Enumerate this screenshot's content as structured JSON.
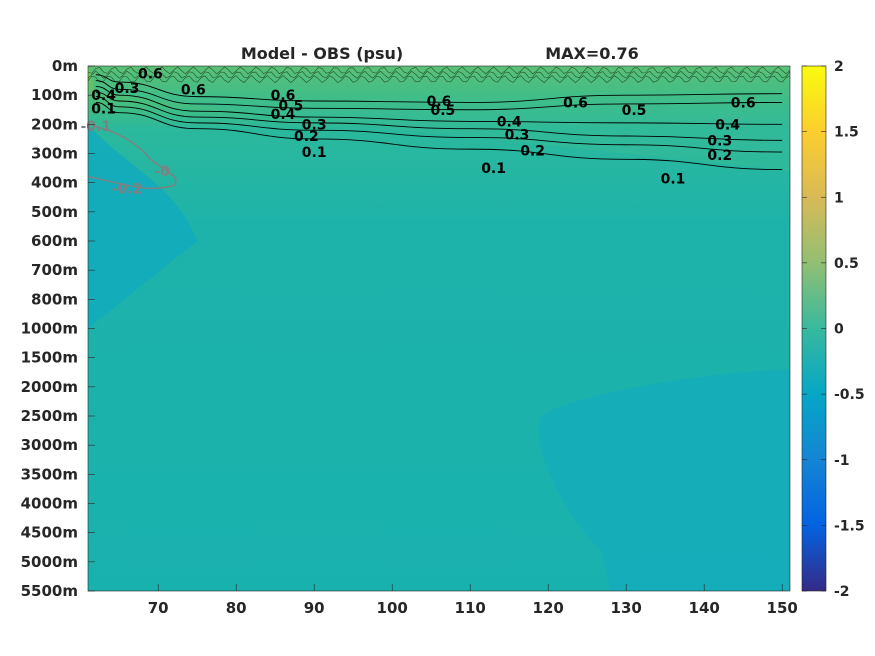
{
  "chart_data": {
    "type": "heatmap",
    "title": "Model - OBS (psu)",
    "max_label": "MAX=0.76",
    "x_ticks": [
      "70",
      "80",
      "90",
      "100",
      "110",
      "120",
      "130",
      "140",
      "150"
    ],
    "x_tick_values": [
      70,
      80,
      90,
      100,
      110,
      120,
      130,
      140,
      150
    ],
    "xlim": [
      61,
      151
    ],
    "y_ticks": [
      "0m",
      "100m",
      "200m",
      "300m",
      "400m",
      "500m",
      "600m",
      "700m",
      "800m",
      "1000m",
      "1500m",
      "2000m",
      "2500m",
      "3000m",
      "3500m",
      "4000m",
      "4500m",
      "5000m",
      "5500m"
    ],
    "colorbar": {
      "limits": [
        -2,
        2
      ],
      "ticks": [
        "2",
        "1.5",
        "1",
        "0.5",
        "0",
        "-0.5",
        "-1",
        "-1.5",
        "-2"
      ],
      "tick_values": [
        2,
        1.5,
        1,
        0.5,
        0,
        -0.5,
        -1,
        -1.5,
        -2
      ],
      "colormap": "parula"
    },
    "contours": [
      {
        "level": 0.6,
        "depth_index": [
          0.3,
          0.55,
          1.05,
          1.2,
          1.25,
          1.0,
          0.95
        ]
      },
      {
        "level": 0.5,
        "depth_index": [
          0.5,
          0.8,
          1.3,
          1.45,
          1.5,
          1.3,
          1.25
        ]
      },
      {
        "level": 0.4,
        "depth_index": [
          0.7,
          1.0,
          1.55,
          1.75,
          1.9,
          1.95,
          2.0
        ]
      },
      {
        "level": 0.3,
        "depth_index": [
          0.9,
          1.2,
          1.75,
          1.95,
          2.15,
          2.4,
          2.55
        ]
      },
      {
        "level": 0.2,
        "depth_index": [
          1.05,
          1.4,
          1.95,
          2.2,
          2.45,
          2.7,
          2.95
        ]
      },
      {
        "level": 0.1,
        "depth_index": [
          1.25,
          1.6,
          2.15,
          2.5,
          2.85,
          3.2,
          3.55
        ]
      }
    ],
    "contour_x": [
      62,
      65,
      75,
      90,
      110,
      130,
      150
    ],
    "contour_labels": [
      {
        "text": "0.6",
        "x": 69,
        "y": 0.25
      },
      {
        "text": "0.6",
        "x": 74.5,
        "y": 0.8
      },
      {
        "text": "0.6",
        "x": 86,
        "y": 1.0
      },
      {
        "text": "0.6",
        "x": 106,
        "y": 1.2
      },
      {
        "text": "0.6",
        "x": 123.5,
        "y": 1.25
      },
      {
        "text": "0.6",
        "x": 145,
        "y": 1.25
      },
      {
        "text": "0.5",
        "x": 106.5,
        "y": 1.5
      },
      {
        "text": "0.5",
        "x": 131,
        "y": 1.5
      },
      {
        "text": "0.5",
        "x": 87,
        "y": 1.35
      },
      {
        "text": "0.4",
        "x": 86,
        "y": 1.65
      },
      {
        "text": "0.4",
        "x": 115,
        "y": 1.9
      },
      {
        "text": "0.4",
        "x": 143,
        "y": 2.0
      },
      {
        "text": "0.3",
        "x": 90,
        "y": 2.0
      },
      {
        "text": "0.3",
        "x": 116,
        "y": 2.35
      },
      {
        "text": "0.3",
        "x": 142,
        "y": 2.55
      },
      {
        "text": "0.2",
        "x": 89,
        "y": 2.4
      },
      {
        "text": "0.2",
        "x": 118,
        "y": 2.9
      },
      {
        "text": "0.2",
        "x": 142,
        "y": 3.05
      },
      {
        "text": "0.1",
        "x": 90,
        "y": 2.95
      },
      {
        "text": "0.1",
        "x": 113,
        "y": 3.5
      },
      {
        "text": "0.1",
        "x": 136,
        "y": 3.85
      },
      {
        "text": "0.3",
        "x": 66,
        "y": 0.75
      },
      {
        "text": "0.4",
        "x": 63,
        "y": 1.0
      },
      {
        "text": "0.1",
        "x": 63,
        "y": 1.45
      }
    ],
    "negative_contour_labels": [
      {
        "text": "-0.1",
        "x": 62,
        "y": 2.05
      },
      {
        "text": "-0.2",
        "x": 66,
        "y": 4.2
      },
      {
        "text": "-0",
        "x": 70.5,
        "y": 3.6
      }
    ]
  },
  "colors": {
    "surface": "#86c84a",
    "upper": "#36bb98",
    "mid": "#1fb3a8",
    "deep": "#14afb8",
    "patch": "#10aabf",
    "contour": "#000000",
    "negative_contour": "#808080"
  }
}
